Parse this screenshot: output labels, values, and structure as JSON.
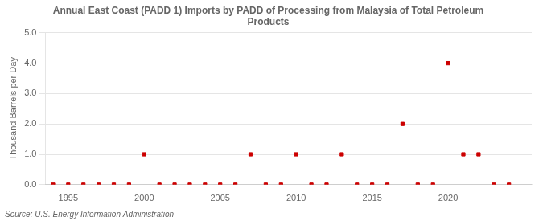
{
  "chart_data": {
    "type": "scatter",
    "title": "Annual East Coast (PADD 1) Imports by PADD of Processing from Malaysia of Total Petroleum\nProducts",
    "ylabel": "Thousand Barrels per Day",
    "annotations": [
      "Source: U.S. Energy Information Administration"
    ],
    "x": [
      1994,
      1995,
      1996,
      1997,
      1998,
      1999,
      2000,
      2001,
      2002,
      2003,
      2004,
      2005,
      2006,
      2007,
      2008,
      2009,
      2010,
      2011,
      2012,
      2013,
      2014,
      2015,
      2016,
      2017,
      2018,
      2019,
      2020,
      2021,
      2022,
      2023,
      2024
    ],
    "values": [
      0,
      0,
      0,
      0,
      0,
      0,
      1,
      0,
      0,
      0,
      0,
      0,
      0,
      1,
      0,
      0,
      1,
      0,
      0,
      1,
      0,
      0,
      0,
      2,
      0,
      0,
      4,
      1,
      1,
      0,
      0
    ],
    "color": "#cc0000",
    "marker": "square",
    "xlim": [
      1993.5,
      2025.5
    ],
    "xticks": [
      1995,
      2000,
      2005,
      2010,
      2015,
      2020
    ],
    "ylim": [
      0.0,
      5.0
    ],
    "yticks": [
      {
        "value": 0,
        "label": "0.0"
      },
      {
        "value": 1,
        "label": "1.0"
      },
      {
        "value": 2,
        "label": "2.0"
      },
      {
        "value": 3,
        "label": "3.0"
      },
      {
        "value": 4,
        "label": "4.0"
      },
      {
        "value": 5,
        "label": "5.0"
      }
    ],
    "grid": "y"
  }
}
